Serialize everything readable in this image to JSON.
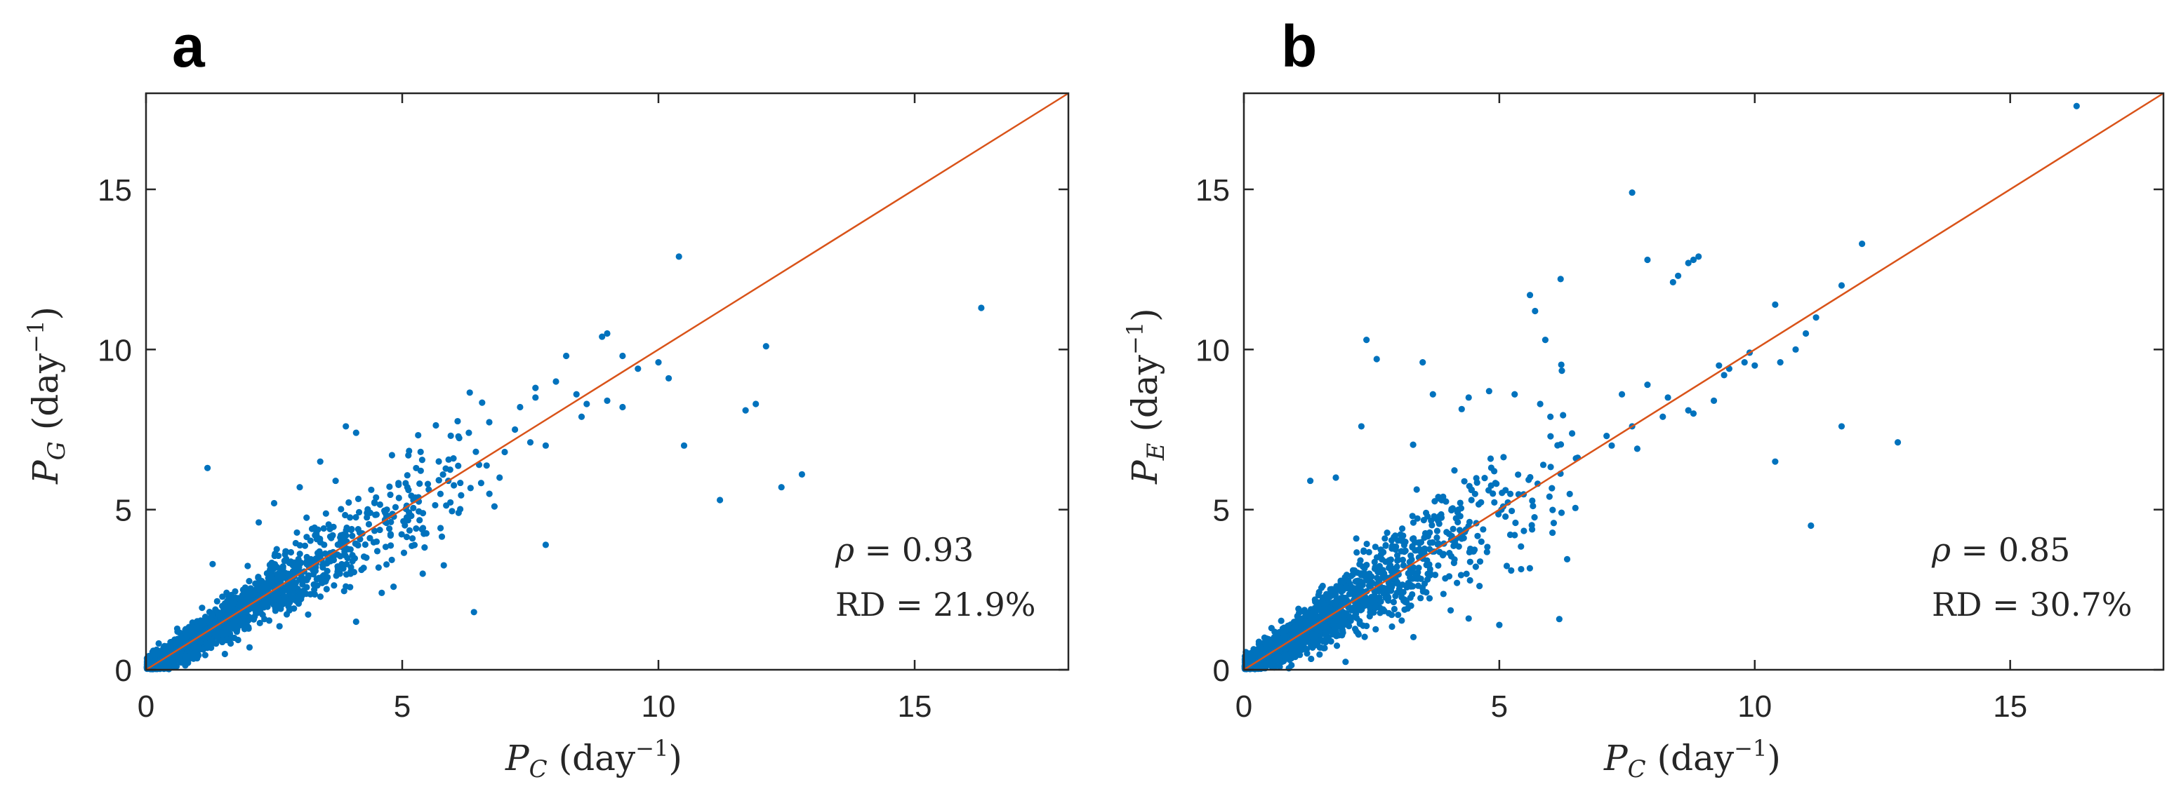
{
  "chart_data": [
    {
      "type": "scatter",
      "panel_label": "a",
      "x_symbol": "P",
      "x_subscript": "C",
      "y_symbol": "P",
      "y_subscript": "G",
      "unit_open": "(day",
      "unit_exp": "−1",
      "unit_close": ")",
      "xlim": [
        0,
        18
      ],
      "ylim": [
        0,
        18
      ],
      "xticks": [
        0,
        5,
        10,
        15
      ],
      "yticks": [
        0,
        5,
        10,
        15
      ],
      "grid": false,
      "marker_color": "#0072BD",
      "reference_line": {
        "label": "y = x",
        "color": "#D95319",
        "from": [
          0,
          0
        ],
        "to": [
          18,
          18
        ]
      },
      "annotations": {
        "rho_symbol": "ρ",
        "rho_text": " = 0.93",
        "rd_text": "RD = 21.9%"
      },
      "series": [
        {
          "name": "samples",
          "x": [
            16.3,
            10.4,
            12.8,
            12.4,
            11.2,
            12.1,
            11.9,
            11.7,
            10.5,
            10.0,
            9.0,
            8.9,
            9.3,
            9.6,
            8.2,
            8.0,
            8.4,
            9.0,
            8.6,
            7.6,
            7.3,
            7.2,
            7.5,
            7.8,
            7.0,
            6.5,
            6.9,
            7.8,
            6.3,
            6.0,
            5.9,
            5.5,
            5.1,
            4.7,
            3.9,
            6.4,
            4.1,
            4.6,
            4.0,
            1.2,
            4.1,
            4.8,
            3.4,
            3.0,
            3.7,
            2.5,
            2.2,
            1.3,
            5.4,
            3.9,
            3.8,
            4.3,
            4.5,
            5.2,
            6.1,
            6.8,
            8.5,
            7.6,
            9.3,
            10.2
          ],
          "y": [
            11.3,
            12.9,
            6.1,
            5.7,
            5.3,
            10.1,
            8.3,
            8.1,
            7.0,
            9.6,
            10.5,
            10.4,
            9.8,
            9.4,
            9.8,
            9.0,
            8.6,
            8.4,
            8.3,
            8.5,
            8.2,
            7.5,
            7.1,
            7.0,
            6.8,
            6.4,
            6.0,
            3.9,
            7.4,
            6.6,
            5.9,
            5.8,
            5.7,
            5.0,
            7.6,
            1.8,
            1.5,
            2.4,
            3.2,
            6.3,
            7.4,
            6.7,
            6.5,
            5.7,
            5.9,
            5.2,
            4.6,
            3.3,
            3.0,
            2.6,
            4.0,
            3.5,
            4.0,
            4.1,
            4.9,
            5.1,
            7.9,
            8.8,
            8.2,
            9.1
          ]
        }
      ]
    },
    {
      "type": "scatter",
      "panel_label": "b",
      "x_symbol": "P",
      "x_subscript": "C",
      "y_symbol": "P",
      "y_subscript": "E",
      "unit_open": "(day",
      "unit_exp": "−1",
      "unit_close": ")",
      "xlim": [
        0,
        18
      ],
      "ylim": [
        0,
        18
      ],
      "xticks": [
        0,
        5,
        10,
        15
      ],
      "yticks": [
        0,
        5,
        10,
        15
      ],
      "grid": false,
      "marker_color": "#0072BD",
      "reference_line": {
        "label": "y = x",
        "color": "#D95319",
        "from": [
          0,
          0
        ],
        "to": [
          18,
          18
        ]
      },
      "annotations": {
        "rho_symbol": "ρ",
        "rho_text": " = 0.85",
        "rd_text": "RD = 30.7%"
      },
      "series": [
        {
          "name": "samples",
          "x": [
            16.3,
            7.6,
            12.1,
            11.7,
            8.9,
            8.8,
            8.7,
            8.4,
            8.5,
            7.9,
            11.2,
            11.0,
            10.4,
            10.8,
            10.5,
            9.9,
            9.5,
            9.8,
            9.3,
            12.8,
            11.7,
            11.1,
            10.4,
            9.2,
            8.7,
            8.2,
            7.6,
            5.6,
            5.7,
            6.2,
            5.9,
            7.4,
            7.9,
            8.3,
            7.1,
            6.0,
            5.8,
            5.3,
            4.4,
            3.5,
            4.8,
            2.4,
            2.6,
            3.7,
            1.8,
            1.3,
            2.3,
            3.9,
            4.4,
            5.0,
            4.9,
            4.2,
            3.3,
            2.2,
            6.5,
            7.2,
            7.7,
            8.8,
            9.4,
            10.0
          ],
          "y": [
            17.6,
            14.9,
            13.3,
            12.0,
            12.9,
            12.8,
            12.7,
            12.1,
            12.3,
            12.8,
            11.0,
            10.5,
            11.4,
            10.0,
            9.6,
            9.9,
            9.4,
            9.6,
            9.5,
            7.1,
            7.6,
            4.5,
            6.5,
            8.4,
            8.1,
            7.9,
            7.6,
            11.7,
            11.2,
            12.2,
            10.3,
            8.6,
            8.9,
            8.5,
            7.3,
            7.9,
            8.3,
            8.6,
            8.5,
            9.6,
            8.7,
            10.3,
            9.7,
            8.6,
            6.0,
            5.9,
            7.6,
            5.4,
            1.6,
            1.4,
            6.2,
            5.0,
            4.8,
            1.2,
            6.6,
            7.0,
            6.9,
            8.0,
            9.2,
            9.5
          ]
        }
      ]
    }
  ]
}
